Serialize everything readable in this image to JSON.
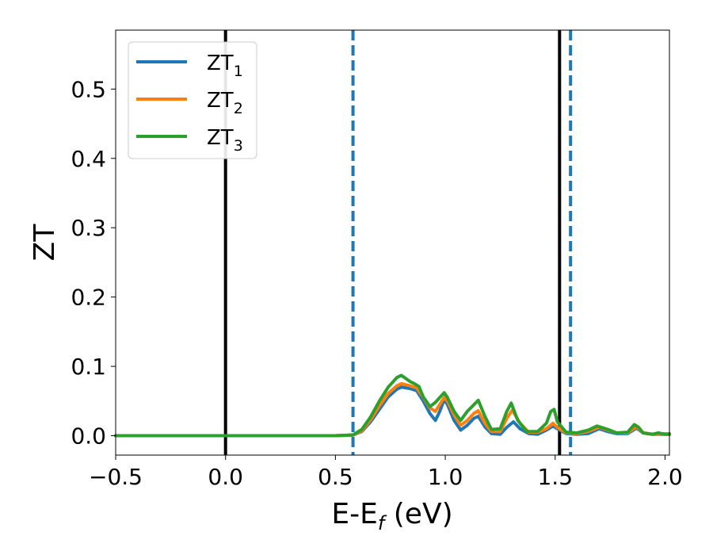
{
  "chart_data": {
    "type": "line",
    "xlabel": {
      "base": "E-E",
      "sub": "f",
      "suffix": " (eV)"
    },
    "ylabel": "ZT",
    "xlim": [
      -0.5,
      2.02
    ],
    "ylim": [
      -0.028,
      0.585
    ],
    "grid": false,
    "legend_position": "top-left",
    "x_ticks": [
      -0.5,
      0.0,
      0.5,
      1.0,
      1.5,
      2.0
    ],
    "x_tick_labels": [
      "−0.5",
      "0.0",
      "0.5",
      "1.0",
      "1.5",
      "2.0"
    ],
    "y_ticks": [
      0.0,
      0.1,
      0.2,
      0.3,
      0.4,
      0.5
    ],
    "y_tick_labels": [
      "0.0",
      "0.1",
      "0.2",
      "0.3",
      "0.4",
      "0.5"
    ],
    "vertical_lines": [
      {
        "x": 0.0,
        "style": "solid",
        "color": "#000000"
      },
      {
        "x": 1.52,
        "style": "solid",
        "color": "#000000"
      },
      {
        "x": 0.58,
        "style": "dashed",
        "color": "#1f77b4"
      },
      {
        "x": 1.57,
        "style": "dashed",
        "color": "#1f77b4"
      }
    ],
    "series": [
      {
        "name": "ZT",
        "subscript": "1",
        "color": "#1f77b4",
        "points": [
          [
            -0.5,
            0.0
          ],
          [
            0.5,
            0.0
          ],
          [
            0.58,
            0.001
          ],
          [
            0.62,
            0.006
          ],
          [
            0.66,
            0.02
          ],
          [
            0.7,
            0.038
          ],
          [
            0.74,
            0.056
          ],
          [
            0.78,
            0.067
          ],
          [
            0.8,
            0.07
          ],
          [
            0.84,
            0.068
          ],
          [
            0.87,
            0.065
          ],
          [
            0.9,
            0.05
          ],
          [
            0.93,
            0.032
          ],
          [
            0.955,
            0.022
          ],
          [
            0.975,
            0.035
          ],
          [
            0.995,
            0.052
          ],
          [
            1.01,
            0.045
          ],
          [
            1.04,
            0.022
          ],
          [
            1.07,
            0.008
          ],
          [
            1.1,
            0.015
          ],
          [
            1.13,
            0.025
          ],
          [
            1.15,
            0.028
          ],
          [
            1.18,
            0.013
          ],
          [
            1.21,
            0.003
          ],
          [
            1.25,
            0.002
          ],
          [
            1.28,
            0.012
          ],
          [
            1.31,
            0.02
          ],
          [
            1.34,
            0.01
          ],
          [
            1.38,
            0.003
          ],
          [
            1.42,
            0.002
          ],
          [
            1.46,
            0.008
          ],
          [
            1.49,
            0.014
          ],
          [
            1.51,
            0.01
          ],
          [
            1.55,
            0.003
          ],
          [
            1.6,
            0.002
          ],
          [
            1.65,
            0.003
          ],
          [
            1.7,
            0.01
          ],
          [
            1.74,
            0.006
          ],
          [
            1.78,
            0.003
          ],
          [
            1.83,
            0.003
          ],
          [
            1.87,
            0.011
          ],
          [
            1.9,
            0.004
          ],
          [
            1.95,
            0.002
          ],
          [
            2.02,
            0.002
          ]
        ]
      },
      {
        "name": "ZT",
        "subscript": "2",
        "color": "#ff7f0e",
        "points": [
          [
            -0.5,
            0.0
          ],
          [
            0.5,
            0.0
          ],
          [
            0.58,
            0.001
          ],
          [
            0.62,
            0.007
          ],
          [
            0.66,
            0.023
          ],
          [
            0.7,
            0.043
          ],
          [
            0.74,
            0.061
          ],
          [
            0.78,
            0.072
          ],
          [
            0.8,
            0.075
          ],
          [
            0.84,
            0.072
          ],
          [
            0.87,
            0.069
          ],
          [
            0.9,
            0.055
          ],
          [
            0.93,
            0.04
          ],
          [
            0.955,
            0.035
          ],
          [
            0.975,
            0.045
          ],
          [
            0.995,
            0.055
          ],
          [
            1.01,
            0.05
          ],
          [
            1.04,
            0.03
          ],
          [
            1.07,
            0.015
          ],
          [
            1.1,
            0.022
          ],
          [
            1.13,
            0.032
          ],
          [
            1.15,
            0.036
          ],
          [
            1.18,
            0.018
          ],
          [
            1.21,
            0.006
          ],
          [
            1.25,
            0.006
          ],
          [
            1.28,
            0.025
          ],
          [
            1.305,
            0.037
          ],
          [
            1.34,
            0.018
          ],
          [
            1.38,
            0.005
          ],
          [
            1.42,
            0.005
          ],
          [
            1.46,
            0.01
          ],
          [
            1.49,
            0.018
          ],
          [
            1.51,
            0.012
          ],
          [
            1.55,
            0.004
          ],
          [
            1.6,
            0.003
          ],
          [
            1.65,
            0.006
          ],
          [
            1.7,
            0.012
          ],
          [
            1.74,
            0.008
          ],
          [
            1.78,
            0.004
          ],
          [
            1.83,
            0.004
          ],
          [
            1.87,
            0.013
          ],
          [
            1.9,
            0.004
          ],
          [
            1.95,
            0.002
          ],
          [
            2.02,
            0.003
          ]
        ]
      },
      {
        "name": "ZT",
        "subscript": "3",
        "color": "#2ca02c",
        "points": [
          [
            -0.5,
            0.0
          ],
          [
            0.5,
            0.0
          ],
          [
            0.58,
            0.001
          ],
          [
            0.62,
            0.009
          ],
          [
            0.66,
            0.027
          ],
          [
            0.7,
            0.05
          ],
          [
            0.74,
            0.07
          ],
          [
            0.78,
            0.084
          ],
          [
            0.8,
            0.087
          ],
          [
            0.84,
            0.078
          ],
          [
            0.86,
            0.075
          ],
          [
            0.88,
            0.071
          ],
          [
            0.9,
            0.056
          ],
          [
            0.93,
            0.042
          ],
          [
            0.955,
            0.048
          ],
          [
            0.975,
            0.055
          ],
          [
            0.995,
            0.062
          ],
          [
            1.01,
            0.055
          ],
          [
            1.04,
            0.035
          ],
          [
            1.07,
            0.022
          ],
          [
            1.1,
            0.035
          ],
          [
            1.125,
            0.043
          ],
          [
            1.15,
            0.051
          ],
          [
            1.18,
            0.028
          ],
          [
            1.21,
            0.009
          ],
          [
            1.25,
            0.01
          ],
          [
            1.28,
            0.035
          ],
          [
            1.3,
            0.047
          ],
          [
            1.33,
            0.022
          ],
          [
            1.37,
            0.006
          ],
          [
            1.42,
            0.006
          ],
          [
            1.46,
            0.018
          ],
          [
            1.48,
            0.035
          ],
          [
            1.495,
            0.038
          ],
          [
            1.51,
            0.02
          ],
          [
            1.55,
            0.005
          ],
          [
            1.6,
            0.004
          ],
          [
            1.65,
            0.008
          ],
          [
            1.69,
            0.014
          ],
          [
            1.74,
            0.009
          ],
          [
            1.78,
            0.004
          ],
          [
            1.83,
            0.005
          ],
          [
            1.86,
            0.016
          ],
          [
            1.88,
            0.012
          ],
          [
            1.9,
            0.004
          ],
          [
            1.94,
            0.002
          ],
          [
            1.97,
            0.004
          ],
          [
            2.0,
            0.002
          ],
          [
            2.02,
            0.002
          ]
        ]
      }
    ]
  }
}
